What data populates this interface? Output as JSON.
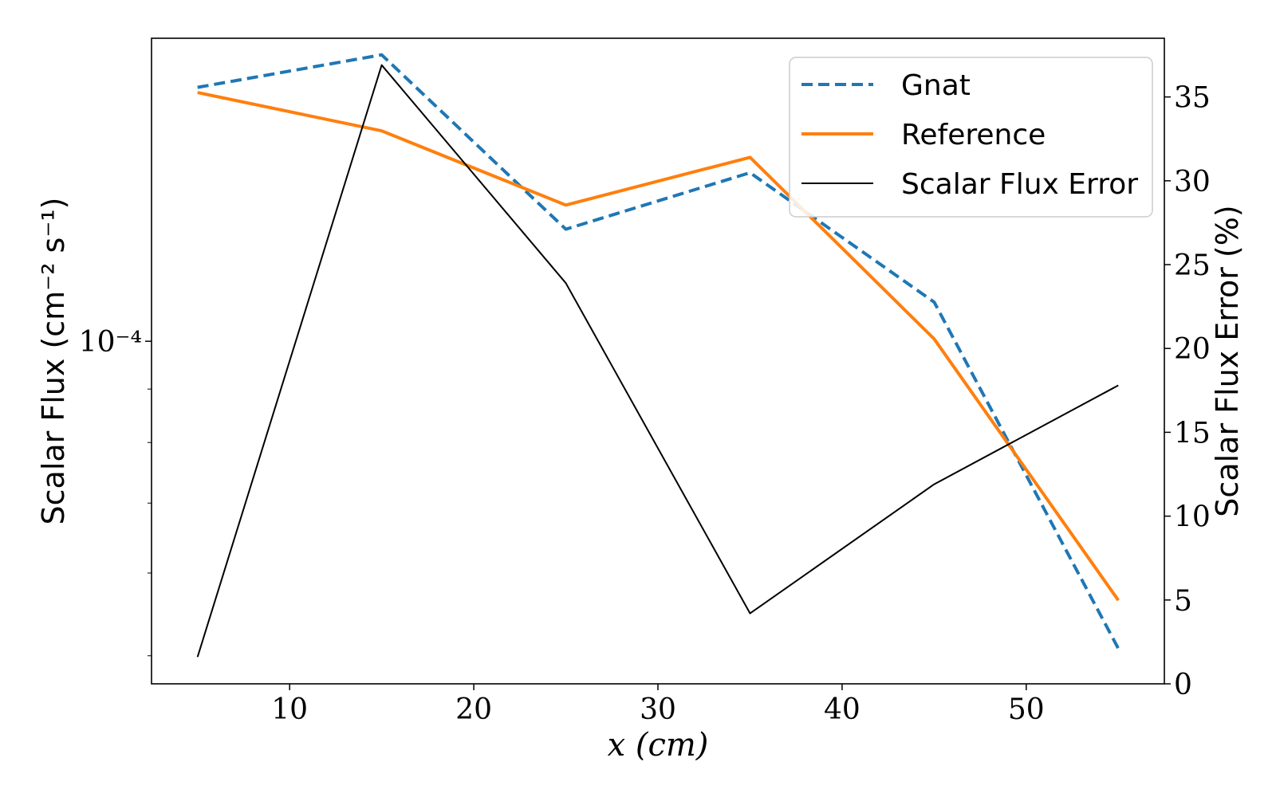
{
  "chart_data": {
    "type": "line",
    "x": [
      5,
      15,
      25,
      35,
      45,
      55
    ],
    "xlim": [
      2.5,
      57.5
    ],
    "x_ticks": [
      10,
      20,
      30,
      40,
      50
    ],
    "xlabel": "x (cm)",
    "ylabel_left": "Scalar Flux (cm⁻² s⁻¹)",
    "ylabel_right": "Scalar Flux Error (%)",
    "y_left_scale": "log",
    "y_left_tick_label": "10⁻⁴",
    "y_left_tick_value": 0.0001,
    "ylim_left": [
      4.7e-05,
      0.000195
    ],
    "ylim_right": [
      0,
      38.5
    ],
    "y_right_ticks": [
      0,
      5,
      10,
      15,
      20,
      25,
      30,
      35
    ],
    "series": [
      {
        "name": "Gnat",
        "axis": "left",
        "style": "dashed",
        "color": "#1f77b4",
        "values": [
          0.000175,
          0.000188,
          0.000128,
          0.000145,
          0.000109,
          5.08e-05
        ]
      },
      {
        "name": "Reference",
        "axis": "left",
        "style": "solid",
        "color": "#ff7f0e",
        "values": [
          0.000173,
          0.000159,
          0.000135,
          0.00015,
          0.0001005,
          5.65e-05
        ]
      },
      {
        "name": "Scalar Flux Error",
        "axis": "right",
        "style": "solid",
        "color": "#000000",
        "values": [
          1.6,
          36.9,
          23.9,
          4.2,
          11.9,
          17.8
        ]
      }
    ],
    "legend": {
      "position": "upper-right",
      "entries": [
        "Gnat",
        "Reference",
        "Scalar Flux Error"
      ]
    },
    "grid": false
  }
}
